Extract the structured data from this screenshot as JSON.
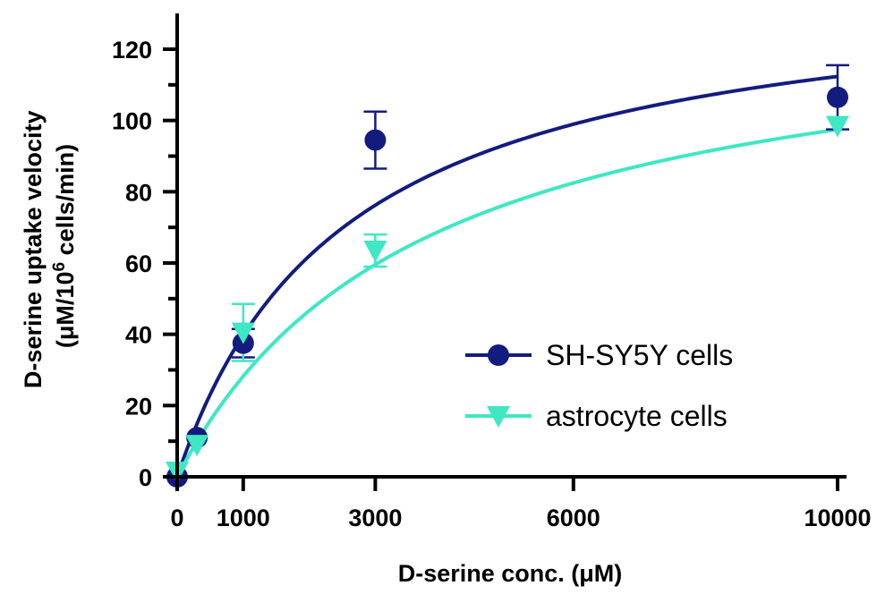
{
  "chart_data": {
    "type": "scatter",
    "xlabel": "D-serine conc. (μM)",
    "ylabel_line1": "D-serine uptake velocity",
    "ylabel_line2_prefix": "(μM/10",
    "ylabel_line2_sup": "6",
    "ylabel_line2_suffix": " cells/min)",
    "xlim": [
      0,
      10300
    ],
    "ylim": [
      0,
      130
    ],
    "x_ticks": [
      0,
      1000,
      3000,
      6000,
      10000
    ],
    "y_ticks": [
      0,
      20,
      40,
      60,
      80,
      100,
      120
    ],
    "y_minor_ticks": [
      10,
      30,
      50,
      70,
      90,
      110
    ],
    "legend_position": "center-right",
    "series": [
      {
        "name": "SH-SY5Y cells",
        "color": "#131c7e",
        "marker": "circle",
        "points": [
          {
            "x": 0,
            "y": 0,
            "err": 0
          },
          {
            "x": 300,
            "y": 11,
            "err": 0
          },
          {
            "x": 1000,
            "y": 37.5,
            "err": 4
          },
          {
            "x": 3000,
            "y": 94.5,
            "err": 8
          },
          {
            "x": 10000,
            "y": 106.5,
            "err": 9
          }
        ],
        "fit": {
          "model": "michaelis-menten",
          "Vmax": 141,
          "Km": 2550
        }
      },
      {
        "name": "astrocyte cells",
        "color": "#3de8c2",
        "marker": "triangle-down",
        "points": [
          {
            "x": 0,
            "y": 1.5,
            "err": 0
          },
          {
            "x": 300,
            "y": 9,
            "err": 0
          },
          {
            "x": 1000,
            "y": 40.5,
            "err": 8
          },
          {
            "x": 3000,
            "y": 63.5,
            "err": 4.5
          },
          {
            "x": 10000,
            "y": 98.5,
            "err": 0
          }
        ],
        "fit": {
          "model": "michaelis-menten",
          "Vmax": 134,
          "Km": 3750
        }
      }
    ]
  }
}
